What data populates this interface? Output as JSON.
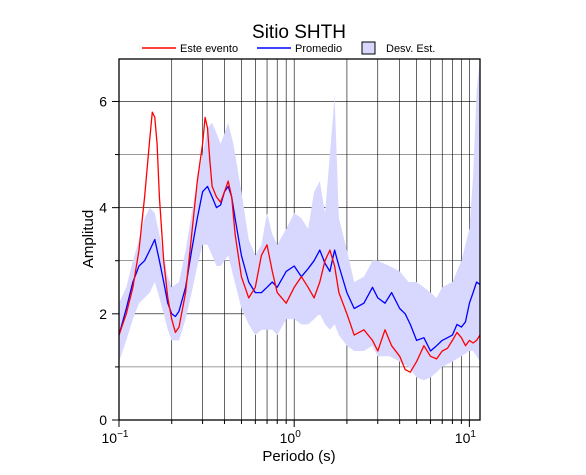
{
  "chart_data": {
    "type": "line",
    "title": "Sitio SHTH",
    "xlabel": "Periodo (s)",
    "ylabel": "Amplitud",
    "x_scale": "log",
    "xlim": [
      0.1,
      11.5
    ],
    "ylim": [
      0,
      6.8
    ],
    "x_ticks": [
      0.1,
      1,
      10
    ],
    "x_tick_labels": [
      {
        "base": "10",
        "exp": "−1"
      },
      {
        "base": "10",
        "exp": "0"
      },
      {
        "base": "10",
        "exp": "1"
      }
    ],
    "y_ticks": [
      0,
      2,
      4,
      6
    ],
    "y_tick_labels": [
      "0",
      "2",
      "4",
      "6"
    ],
    "grid": "x-minor-and-major-log, y-major",
    "legend_placement": "top",
    "legend": [
      {
        "label": "Este evento",
        "kind": "line",
        "color": "#ff0000"
      },
      {
        "label": "Promedio",
        "kind": "line",
        "color": "#0000ff"
      },
      {
        "label": "Desv. Est.",
        "kind": "box",
        "color": "#d8d8ff"
      }
    ],
    "series": [
      {
        "name": "Este evento",
        "color": "#ff0000",
        "x": [
          0.1,
          0.11,
          0.12,
          0.13,
          0.14,
          0.15,
          0.155,
          0.16,
          0.165,
          0.17,
          0.18,
          0.19,
          0.2,
          0.21,
          0.22,
          0.24,
          0.26,
          0.28,
          0.3,
          0.31,
          0.32,
          0.33,
          0.34,
          0.36,
          0.38,
          0.4,
          0.42,
          0.44,
          0.46,
          0.5,
          0.55,
          0.6,
          0.65,
          0.7,
          0.75,
          0.8,
          0.9,
          1.0,
          1.1,
          1.2,
          1.3,
          1.4,
          1.5,
          1.6,
          1.7,
          1.8,
          2.0,
          2.2,
          2.5,
          2.8,
          3.0,
          3.3,
          3.6,
          4.0,
          4.3,
          4.6,
          5.0,
          5.5,
          6.0,
          6.5,
          7.0,
          7.5,
          8.0,
          8.5,
          9.0,
          9.5,
          10.0,
          10.5,
          11.0,
          11.5
        ],
        "y": [
          1.6,
          2.0,
          2.5,
          3.2,
          4.2,
          5.3,
          5.8,
          5.7,
          5.2,
          4.2,
          3.0,
          2.3,
          1.9,
          1.65,
          1.75,
          2.4,
          3.5,
          4.5,
          5.2,
          5.7,
          5.5,
          4.9,
          4.4,
          4.2,
          4.1,
          4.3,
          4.5,
          4.2,
          3.5,
          2.7,
          2.3,
          2.5,
          3.1,
          3.3,
          2.8,
          2.4,
          2.2,
          2.5,
          2.7,
          2.5,
          2.3,
          2.6,
          3.0,
          3.2,
          2.9,
          2.4,
          2.0,
          1.6,
          1.7,
          1.5,
          1.3,
          1.7,
          1.4,
          1.2,
          0.95,
          0.9,
          1.1,
          1.4,
          1.2,
          1.15,
          1.3,
          1.35,
          1.5,
          1.65,
          1.55,
          1.4,
          1.5,
          1.45,
          1.5,
          1.6
        ]
      },
      {
        "name": "Promedio",
        "color": "#0000ff",
        "x": [
          0.1,
          0.11,
          0.12,
          0.13,
          0.14,
          0.15,
          0.16,
          0.17,
          0.18,
          0.19,
          0.2,
          0.21,
          0.22,
          0.24,
          0.26,
          0.28,
          0.3,
          0.32,
          0.34,
          0.36,
          0.38,
          0.4,
          0.42,
          0.44,
          0.46,
          0.5,
          0.55,
          0.6,
          0.65,
          0.7,
          0.75,
          0.8,
          0.9,
          1.0,
          1.1,
          1.2,
          1.3,
          1.4,
          1.5,
          1.6,
          1.7,
          1.8,
          2.0,
          2.2,
          2.5,
          2.8,
          3.0,
          3.3,
          3.6,
          4.0,
          4.3,
          4.6,
          5.0,
          5.5,
          6.0,
          6.5,
          7.0,
          7.5,
          8.0,
          8.5,
          9.0,
          9.5,
          10.0,
          10.5,
          11.0,
          11.5
        ],
        "y": [
          1.6,
          2.1,
          2.6,
          2.9,
          3.0,
          3.2,
          3.4,
          3.0,
          2.6,
          2.2,
          2.0,
          1.95,
          2.05,
          2.5,
          3.2,
          3.8,
          4.3,
          4.4,
          4.2,
          4.0,
          4.05,
          4.3,
          4.4,
          4.2,
          3.8,
          3.1,
          2.6,
          2.4,
          2.4,
          2.5,
          2.6,
          2.5,
          2.8,
          2.9,
          2.7,
          2.85,
          3.0,
          3.2,
          2.95,
          2.8,
          3.2,
          2.9,
          2.4,
          2.1,
          2.2,
          2.5,
          2.3,
          2.2,
          2.4,
          2.1,
          2.0,
          1.8,
          1.5,
          1.55,
          1.3,
          1.4,
          1.5,
          1.55,
          1.6,
          1.8,
          1.75,
          1.85,
          2.2,
          2.4,
          2.6,
          2.55
        ]
      }
    ],
    "std_band": {
      "name": "Desv. Est.",
      "color": "#d8d8ff",
      "x": [
        0.1,
        0.11,
        0.12,
        0.13,
        0.14,
        0.15,
        0.16,
        0.17,
        0.18,
        0.19,
        0.2,
        0.22,
        0.24,
        0.26,
        0.28,
        0.3,
        0.32,
        0.34,
        0.36,
        0.38,
        0.4,
        0.42,
        0.45,
        0.5,
        0.55,
        0.6,
        0.65,
        0.7,
        0.75,
        0.8,
        0.9,
        1.0,
        1.1,
        1.2,
        1.3,
        1.4,
        1.5,
        1.6,
        1.7,
        1.8,
        2.0,
        2.2,
        2.5,
        2.8,
        3.0,
        3.5,
        4.0,
        4.5,
        5.0,
        5.5,
        6.0,
        6.5,
        7.0,
        8.0,
        9.0,
        10.0,
        10.5,
        11.0,
        11.5
      ],
      "upper": [
        2.2,
        2.5,
        3.0,
        3.4,
        3.8,
        4.0,
        3.9,
        3.5,
        3.1,
        2.7,
        2.5,
        2.6,
        3.2,
        3.9,
        4.5,
        5.0,
        5.5,
        5.6,
        5.4,
        5.2,
        5.4,
        5.6,
        5.2,
        4.3,
        3.4,
        3.1,
        3.3,
        3.9,
        3.5,
        3.3,
        3.6,
        3.9,
        3.8,
        3.6,
        4.3,
        4.5,
        3.9,
        5.0,
        6.1,
        3.8,
        3.2,
        2.6,
        2.7,
        3.0,
        3.0,
        2.9,
        2.8,
        2.6,
        2.6,
        2.5,
        2.4,
        2.3,
        2.5,
        2.6,
        3.0,
        3.6,
        4.6,
        6.2,
        6.8
      ],
      "lower": [
        1.1,
        1.5,
        1.9,
        2.2,
        2.3,
        2.4,
        2.6,
        2.3,
        2.0,
        1.7,
        1.5,
        1.5,
        1.9,
        2.4,
        2.9,
        3.3,
        3.3,
        3.1,
        2.9,
        2.9,
        3.0,
        3.1,
        2.7,
        2.1,
        1.8,
        1.6,
        1.7,
        1.7,
        1.7,
        1.6,
        1.9,
        1.9,
        1.8,
        1.8,
        1.9,
        2.0,
        1.8,
        1.7,
        1.8,
        1.6,
        1.4,
        1.3,
        1.3,
        1.4,
        1.2,
        1.2,
        1.1,
        1.0,
        0.8,
        0.75,
        0.8,
        0.9,
        1.0,
        1.1,
        1.2,
        1.3,
        1.3,
        1.2,
        1.1
      ]
    }
  }
}
